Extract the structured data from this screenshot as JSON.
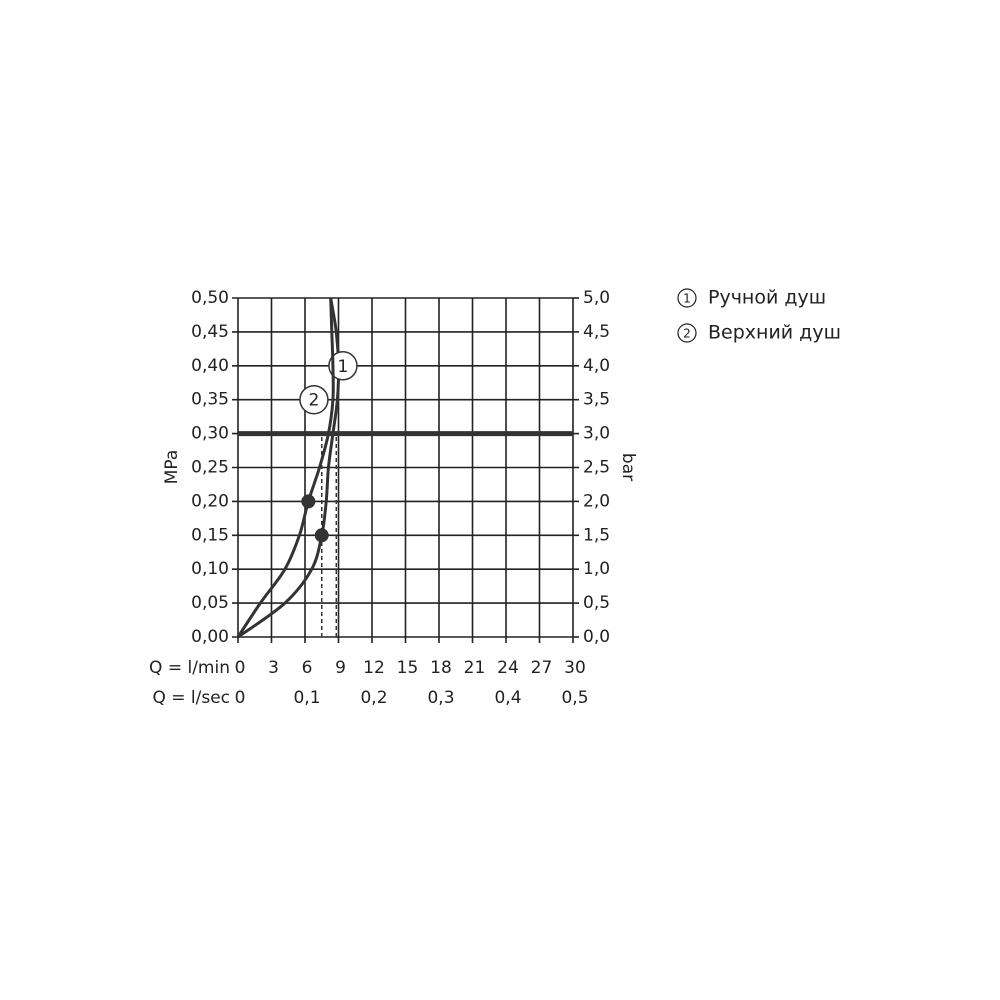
{
  "chart_data": {
    "type": "line",
    "xlabel": "Q = l/min",
    "x2label": "Q = l/sec",
    "ylabel": "MPa",
    "y2label": "bar",
    "xlim": [
      0,
      30
    ],
    "xticks": [
      0,
      3,
      6,
      9,
      12,
      15,
      18,
      21,
      24,
      27,
      30
    ],
    "x2lim": [
      0,
      0.5
    ],
    "x2ticks": [
      {
        "value": 0,
        "label": "0"
      },
      {
        "value": 0.1,
        "label": "0,1"
      },
      {
        "value": 0.2,
        "label": "0,2"
      },
      {
        "value": 0.3,
        "label": "0,3"
      },
      {
        "value": 0.4,
        "label": "0,4"
      },
      {
        "value": 0.5,
        "label": "0,5"
      }
    ],
    "ylim": [
      0,
      0.5
    ],
    "yticks": [
      {
        "value": 0,
        "label": "0,00"
      },
      {
        "value": 0.05,
        "label": "0,05"
      },
      {
        "value": 0.1,
        "label": "0,10"
      },
      {
        "value": 0.15,
        "label": "0,15"
      },
      {
        "value": 0.2,
        "label": "0,20"
      },
      {
        "value": 0.25,
        "label": "0,25"
      },
      {
        "value": 0.3,
        "label": "0,30"
      },
      {
        "value": 0.35,
        "label": "0,35"
      },
      {
        "value": 0.4,
        "label": "0,40"
      },
      {
        "value": 0.45,
        "label": "0,45"
      },
      {
        "value": 0.5,
        "label": "0,50"
      }
    ],
    "y2lim": [
      0,
      5
    ],
    "y2ticks": [
      {
        "value": 0,
        "label": "0,0"
      },
      {
        "value": 0.5,
        "label": "0,5"
      },
      {
        "value": 1,
        "label": "1,0"
      },
      {
        "value": 1.5,
        "label": "1,5"
      },
      {
        "value": 2,
        "label": "2,0"
      },
      {
        "value": 2.5,
        "label": "2,5"
      },
      {
        "value": 3,
        "label": "3,0"
      },
      {
        "value": 3.5,
        "label": "3,5"
      },
      {
        "value": 4,
        "label": "4,0"
      },
      {
        "value": 4.5,
        "label": "4,5"
      },
      {
        "value": 5,
        "label": "5,0"
      }
    ],
    "grid": true,
    "reference_line": 0.3,
    "color": "#333333",
    "series": [
      {
        "name": "Ручной душ",
        "label": "1",
        "color": "#333333",
        "x": [
          0,
          4.2,
          6.6,
          7.5,
          7.9,
          8.1,
          8.5,
          8.9,
          9.0,
          8.8,
          8.3
        ],
        "values": [
          0,
          0.05,
          0.1,
          0.15,
          0.2,
          0.25,
          0.3,
          0.35,
          0.4,
          0.45,
          0.5
        ],
        "marker": [
          7.5,
          0.15
        ],
        "dashed_x": 7.5,
        "label_at": [
          9.4,
          0.4
        ]
      },
      {
        "name": "Верхний душ",
        "label": "2",
        "color": "#333333",
        "x": [
          0,
          2.0,
          4.2,
          5.5,
          6.3,
          7.3,
          8.1,
          8.5,
          8.5,
          8.4,
          8.3
        ],
        "values": [
          0,
          0.05,
          0.1,
          0.15,
          0.2,
          0.25,
          0.3,
          0.35,
          0.4,
          0.45,
          0.5
        ],
        "marker": [
          6.3,
          0.2
        ],
        "dashed_x": 8.8,
        "label_at": [
          6.8,
          0.35
        ]
      }
    ]
  }
}
